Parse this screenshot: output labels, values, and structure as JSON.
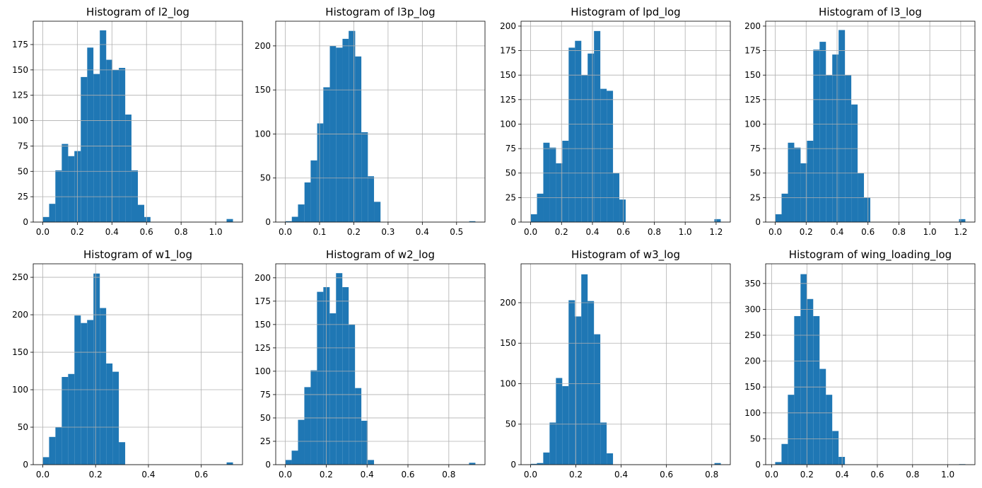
{
  "chart_data": [
    {
      "type": "histogram",
      "title": "Histogram of l2_log",
      "color": "#1f77b4",
      "grid": true,
      "bins": [
        0,
        0.037,
        0.073,
        0.11,
        0.147,
        0.183,
        0.22,
        0.257,
        0.293,
        0.33,
        0.367,
        0.403,
        0.44,
        0.477,
        0.513,
        0.55,
        0.587,
        0.623,
        0.66,
        0.697,
        0.733,
        0.77,
        0.807,
        0.843,
        0.88,
        0.917,
        0.953,
        0.99,
        1.027,
        1.063,
        1.1
      ],
      "counts": [
        5,
        18,
        51,
        77,
        65,
        70,
        143,
        172,
        146,
        189,
        160,
        150,
        152,
        106,
        51,
        17,
        5,
        0,
        0,
        0,
        0,
        0,
        0,
        0,
        0,
        0,
        0,
        0,
        0,
        3
      ],
      "xlim": [
        -0.055,
        1.155
      ],
      "xticks": [
        {
          "value": 0,
          "label": "0.0"
        },
        0.2,
        0.4,
        0.6,
        0.8,
        {
          "value": 1,
          "label": "1.0"
        }
      ],
      "ylim": [
        0,
        198
      ],
      "yticks": [
        0,
        25,
        50,
        75,
        100,
        125,
        150,
        175
      ]
    },
    {
      "type": "histogram",
      "title": "Histogram of l3p_log",
      "color": "#1f77b4",
      "grid": true,
      "bins": [
        0,
        0.019,
        0.037,
        0.056,
        0.074,
        0.093,
        0.111,
        0.13,
        0.148,
        0.167,
        0.185,
        0.204,
        0.222,
        0.241,
        0.259,
        0.278,
        0.296,
        0.315,
        0.333,
        0.352,
        0.37,
        0.389,
        0.407,
        0.426,
        0.444,
        0.463,
        0.481,
        0.5,
        0.518,
        0.537,
        0.555
      ],
      "counts": [
        1,
        6,
        20,
        45,
        70,
        112,
        153,
        200,
        198,
        208,
        217,
        188,
        102,
        52,
        23,
        0,
        0,
        0,
        0,
        0,
        0,
        0,
        0,
        0,
        0,
        0,
        0,
        0,
        0,
        1
      ],
      "xlim": [
        -0.028,
        0.583
      ],
      "xticks": [
        {
          "value": 0,
          "label": "0.0"
        },
        0.1,
        0.2,
        0.3,
        0.4,
        0.5
      ],
      "ylim": [
        0,
        228
      ],
      "yticks": [
        0,
        50,
        100,
        150,
        200
      ]
    },
    {
      "type": "histogram",
      "title": "Histogram of lpd_log",
      "color": "#1f77b4",
      "grid": true,
      "bins": [
        0,
        0.041,
        0.082,
        0.123,
        0.164,
        0.205,
        0.246,
        0.287,
        0.328,
        0.369,
        0.41,
        0.451,
        0.492,
        0.533,
        0.574,
        0.615,
        0.656,
        0.697,
        0.738,
        0.779,
        0.82,
        0.861,
        0.902,
        0.943,
        0.984,
        1.025,
        1.066,
        1.107,
        1.148,
        1.189,
        1.23
      ],
      "counts": [
        8,
        29,
        81,
        76,
        60,
        83,
        178,
        185,
        150,
        172,
        195,
        136,
        134,
        50,
        23,
        0,
        0,
        0,
        0,
        0,
        0,
        0,
        0,
        0,
        0,
        0,
        0,
        0,
        0,
        3
      ],
      "xlim": [
        -0.062,
        1.292
      ],
      "xticks": [
        {
          "value": 0,
          "label": "0.0"
        },
        0.2,
        0.4,
        0.6,
        0.8,
        {
          "value": 1,
          "label": "1.0"
        },
        1.2
      ],
      "ylim": [
        0,
        205
      ],
      "yticks": [
        0,
        25,
        50,
        75,
        100,
        125,
        150,
        175,
        200
      ]
    },
    {
      "type": "histogram",
      "title": "Histogram of l3_log",
      "color": "#1f77b4",
      "grid": true,
      "bins": [
        0,
        0.041,
        0.082,
        0.123,
        0.164,
        0.205,
        0.246,
        0.287,
        0.328,
        0.369,
        0.41,
        0.451,
        0.492,
        0.533,
        0.574,
        0.615,
        0.656,
        0.697,
        0.738,
        0.779,
        0.82,
        0.861,
        0.902,
        0.943,
        0.984,
        1.025,
        1.066,
        1.107,
        1.148,
        1.189,
        1.23
      ],
      "counts": [
        8,
        29,
        81,
        76,
        60,
        83,
        176,
        184,
        150,
        171,
        196,
        150,
        120,
        50,
        25,
        0,
        0,
        0,
        0,
        0,
        0,
        0,
        0,
        0,
        0,
        0,
        0,
        0,
        0,
        3
      ],
      "xlim": [
        -0.062,
        1.292
      ],
      "xticks": [
        {
          "value": 0,
          "label": "0.0"
        },
        0.2,
        0.4,
        0.6,
        0.8,
        {
          "value": 1,
          "label": "1.0"
        },
        1.2
      ],
      "ylim": [
        0,
        205
      ],
      "yticks": [
        0,
        25,
        50,
        75,
        100,
        125,
        150,
        175,
        200
      ]
    },
    {
      "type": "histogram",
      "title": "Histogram of w1_log",
      "color": "#1f77b4",
      "grid": true,
      "bins": [
        0,
        0.024,
        0.048,
        0.072,
        0.096,
        0.12,
        0.144,
        0.168,
        0.192,
        0.216,
        0.24,
        0.264,
        0.288,
        0.312,
        0.336,
        0.36,
        0.384,
        0.408,
        0.432,
        0.456,
        0.48,
        0.504,
        0.528,
        0.552,
        0.576,
        0.6,
        0.624,
        0.648,
        0.672,
        0.696,
        0.72
      ],
      "counts": [
        10,
        37,
        50,
        117,
        121,
        199,
        189,
        193,
        255,
        209,
        135,
        124,
        30,
        0,
        0,
        0,
        0,
        0,
        0,
        0,
        0,
        0,
        0,
        0,
        0,
        0,
        0,
        0,
        0,
        3
      ],
      "xlim": [
        -0.036,
        0.756
      ],
      "xticks": [
        {
          "value": 0,
          "label": "0.0"
        },
        0.2,
        0.4,
        0.6
      ],
      "ylim": [
        0,
        268
      ],
      "yticks": [
        0,
        50,
        100,
        150,
        200,
        250
      ]
    },
    {
      "type": "histogram",
      "title": "Histogram of w2_log",
      "color": "#1f77b4",
      "grid": true,
      "bins": [
        0,
        0.031,
        0.062,
        0.093,
        0.124,
        0.155,
        0.186,
        0.217,
        0.248,
        0.279,
        0.31,
        0.341,
        0.372,
        0.403,
        0.434,
        0.465,
        0.496,
        0.527,
        0.558,
        0.589,
        0.62,
        0.651,
        0.682,
        0.713,
        0.744,
        0.775,
        0.806,
        0.837,
        0.868,
        0.899,
        0.93
      ],
      "counts": [
        5,
        15,
        48,
        83,
        101,
        185,
        190,
        162,
        205,
        190,
        150,
        82,
        47,
        5,
        0,
        0,
        0,
        0,
        0,
        0,
        0,
        0,
        0,
        0,
        0,
        0,
        0,
        0,
        0,
        2
      ],
      "xlim": [
        -0.047,
        0.977
      ],
      "xticks": [
        {
          "value": 0,
          "label": "0.0"
        },
        0.2,
        0.4,
        0.6,
        0.8
      ],
      "ylim": [
        0,
        215
      ],
      "yticks": [
        0,
        25,
        50,
        75,
        100,
        125,
        150,
        175,
        200
      ]
    },
    {
      "type": "histogram",
      "title": "Histogram of w3_log",
      "color": "#1f77b4",
      "grid": true,
      "bins": [
        0,
        0.028,
        0.056,
        0.084,
        0.112,
        0.14,
        0.168,
        0.196,
        0.224,
        0.252,
        0.28,
        0.308,
        0.336,
        0.364,
        0.392,
        0.42,
        0.448,
        0.476,
        0.504,
        0.532,
        0.56,
        0.588,
        0.616,
        0.644,
        0.672,
        0.7,
        0.728,
        0.756,
        0.784,
        0.812,
        0.84
      ],
      "counts": [
        1,
        2,
        15,
        52,
        107,
        97,
        203,
        183,
        235,
        202,
        161,
        52,
        14,
        0,
        0,
        0,
        0,
        0,
        0,
        0,
        0,
        0,
        0,
        0,
        0,
        0,
        0,
        0,
        0,
        2
      ],
      "xlim": [
        -0.042,
        0.882
      ],
      "xticks": [
        {
          "value": 0,
          "label": "0.0"
        },
        0.2,
        0.4,
        0.6,
        0.8
      ],
      "ylim": [
        0,
        248
      ],
      "yticks": [
        0,
        50,
        100,
        150,
        200
      ]
    },
    {
      "type": "histogram",
      "title": "Histogram of wing_loading_log",
      "color": "#1f77b4",
      "grid": true,
      "bins": [
        0.02,
        0.056,
        0.092,
        0.128,
        0.164,
        0.2,
        0.236,
        0.272,
        0.308,
        0.344,
        0.38,
        0.416,
        0.452,
        0.488,
        0.524,
        0.56,
        0.596,
        0.632,
        0.668,
        0.704,
        0.74,
        0.776,
        0.812,
        0.848,
        0.884,
        0.92,
        0.956,
        0.992,
        1.028,
        1.064,
        1.1
      ],
      "counts": [
        5,
        40,
        135,
        287,
        368,
        320,
        287,
        185,
        135,
        65,
        15,
        0,
        0,
        0,
        0,
        0,
        0,
        0,
        0,
        0,
        0,
        0,
        0,
        0,
        0,
        0,
        0,
        0,
        0,
        1
      ],
      "xlim": [
        -0.034,
        1.154
      ],
      "xticks": [
        {
          "value": 0,
          "label": "0.0"
        },
        0.2,
        0.4,
        0.6,
        0.8,
        {
          "value": 1,
          "label": "1.0"
        }
      ],
      "ylim": [
        0,
        388
      ],
      "yticks": [
        0,
        50,
        100,
        150,
        200,
        250,
        300,
        350
      ]
    }
  ]
}
